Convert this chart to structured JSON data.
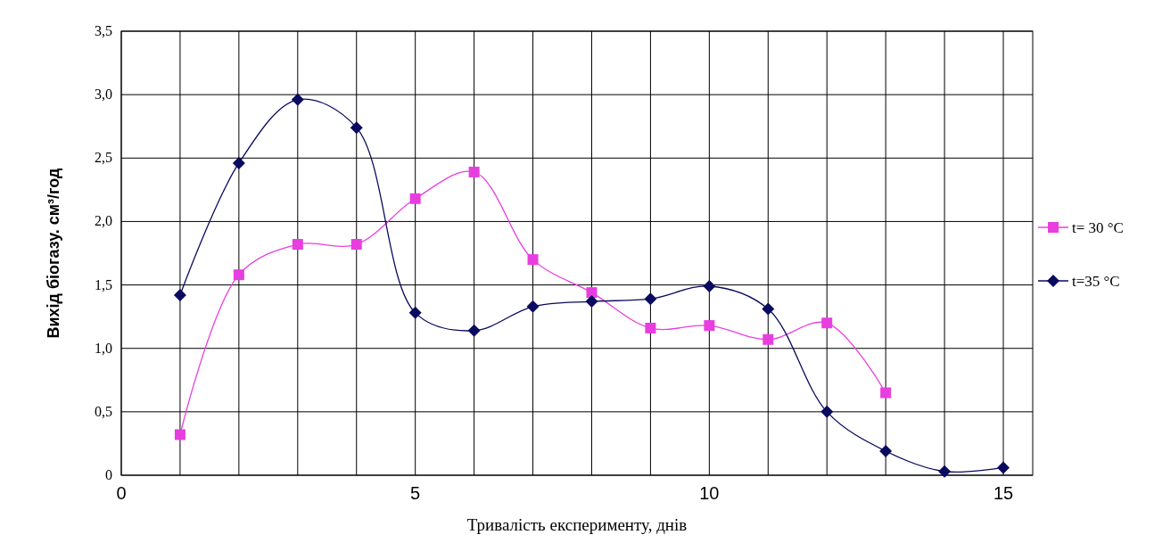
{
  "chart_data": {
    "type": "line",
    "xlabel": "Тривалість експерименту, днів",
    "ylabel": "Вихід біогазу. см³/год",
    "xlim": [
      0,
      15.5
    ],
    "xticks": [
      0,
      {
        "value": 1,
        "label": null
      },
      {
        "value": 2,
        "label": null
      },
      {
        "value": 3,
        "label": null
      },
      {
        "value": 4,
        "label": null
      },
      5,
      {
        "value": 6,
        "label": null
      },
      {
        "value": 7,
        "label": null
      },
      {
        "value": 8,
        "label": null
      },
      {
        "value": 9,
        "label": null
      },
      10,
      {
        "value": 11,
        "label": null
      },
      {
        "value": 12,
        "label": null
      },
      {
        "value": 13,
        "label": null
      },
      {
        "value": 14,
        "label": null
      },
      15
    ],
    "ylim": [
      0,
      3.5
    ],
    "yticks": [
      0,
      {
        "value": 0.5,
        "label": "0,5"
      },
      {
        "value": 1,
        "label": "1,0"
      },
      {
        "value": 1.5,
        "label": "1,5"
      },
      {
        "value": 2,
        "label": "2,0"
      },
      {
        "value": 2.5,
        "label": "2,5"
      },
      {
        "value": 3,
        "label": "3,0"
      },
      {
        "value": 3.5,
        "label": "3,5"
      }
    ],
    "grid": true,
    "legend": "right",
    "series": [
      {
        "name": "t= 30 °C",
        "color": "#e83ee0",
        "marker": "square",
        "x": [
          1,
          2,
          3,
          4,
          5,
          6,
          7,
          8,
          9,
          10,
          11,
          12,
          13
        ],
        "values": [
          0.32,
          1.58,
          1.82,
          1.82,
          2.18,
          2.39,
          1.7,
          1.44,
          1.16,
          1.18,
          1.07,
          1.2,
          0.65
        ]
      },
      {
        "name": "t=35 °C",
        "color": "#0a0a60",
        "marker": "diamond",
        "x": [
          1,
          2,
          3,
          4,
          5,
          6,
          7,
          8,
          9,
          10,
          11,
          12,
          13,
          14,
          15
        ],
        "values": [
          1.42,
          2.46,
          2.96,
          2.74,
          1.28,
          1.14,
          1.33,
          1.37,
          1.39,
          1.49,
          1.31,
          0.5,
          0.19,
          0.03,
          0.06
        ]
      }
    ]
  }
}
